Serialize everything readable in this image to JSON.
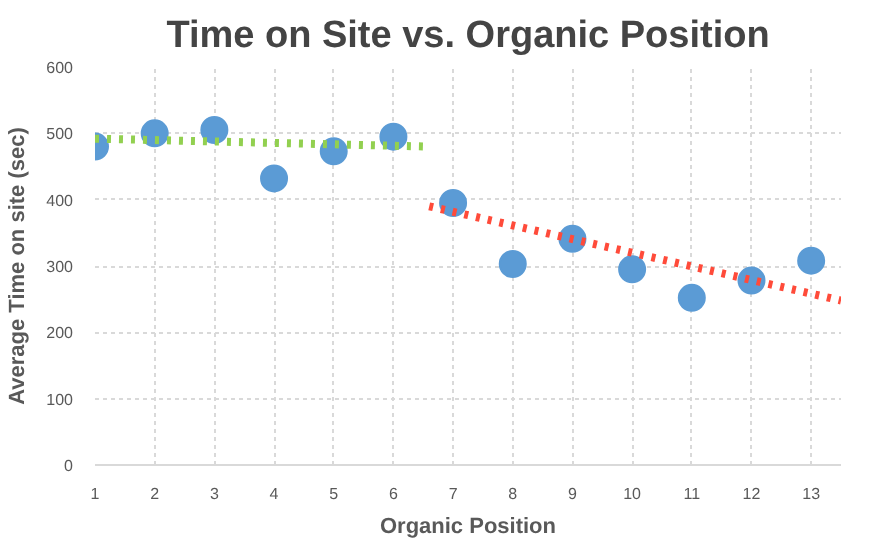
{
  "chart_data": {
    "type": "scatter",
    "title": "Time on Site vs. Organic Position",
    "xlabel": "Organic Position",
    "ylabel": "Average Time on site (sec)",
    "x": [
      1,
      2,
      3,
      4,
      5,
      6,
      7,
      8,
      9,
      10,
      11,
      12,
      13
    ],
    "series": [
      {
        "color": "#5b9bd5",
        "marker": "circle",
        "values": [
          480,
          500,
          505,
          432,
          473,
          495,
          395,
          303,
          341,
          295,
          252,
          278,
          308
        ]
      },
      {
        "type": "line",
        "color": "#92d050",
        "line_style": "dotted",
        "x": [
          1,
          6.6
        ],
        "values": [
          492,
          480
        ]
      },
      {
        "type": "line",
        "color": "#ff4b3a",
        "line_style": "dotted",
        "x": [
          6.6,
          13.5
        ],
        "values": [
          390,
          248
        ]
      }
    ],
    "xlim": [
      1,
      13.5
    ],
    "ylim": [
      0,
      600
    ],
    "xticks": [
      1,
      2,
      3,
      4,
      5,
      6,
      7,
      8,
      9,
      10,
      11,
      12,
      13
    ],
    "yticks": [
      0,
      100,
      200,
      300,
      400,
      500,
      600
    ],
    "grid": true
  }
}
